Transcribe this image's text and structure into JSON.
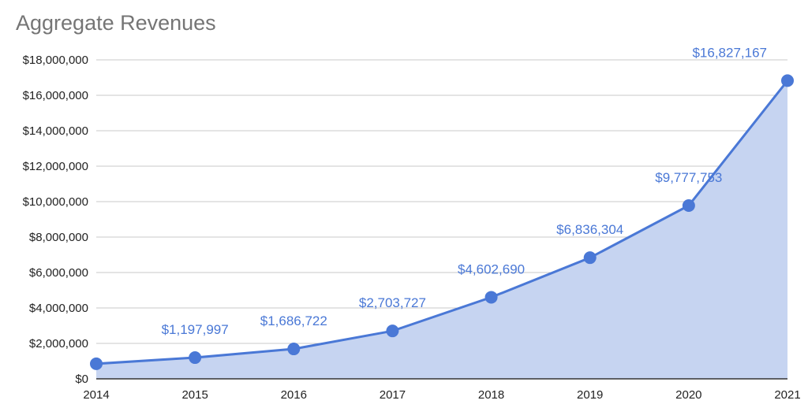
{
  "chart_data": {
    "type": "area",
    "title": "Aggregate Revenues",
    "xlabel": "",
    "ylabel": "",
    "x": [
      "2014",
      "2015",
      "2016",
      "2017",
      "2018",
      "2019",
      "2020",
      "2021"
    ],
    "series": [
      {
        "values": [
          850000,
          1197997,
          1686722,
          2703727,
          4602690,
          6836304,
          9777753,
          16827167
        ]
      }
    ],
    "data_labels": [
      "",
      "$1,197,997",
      "$1,686,722",
      "$2,703,727",
      "$4,602,690",
      "$6,836,304",
      "$9,777,753",
      "$16,827,167"
    ],
    "ylim": [
      0,
      18000000
    ],
    "yticks": [
      0,
      2000000,
      4000000,
      6000000,
      8000000,
      10000000,
      12000000,
      14000000,
      16000000,
      18000000
    ],
    "ytick_labels": [
      "$0",
      "$2,000,000",
      "$4,000,000",
      "$6,000,000",
      "$8,000,000",
      "$10,000,000",
      "$12,000,000",
      "$14,000,000",
      "$16,000,000",
      "$18,000,000"
    ],
    "grid": true,
    "legend": "none",
    "colors": {
      "line": "#4a78d6",
      "fill": "#c6d4f1",
      "label": "#4a78d6",
      "grid": "#c8c8c8",
      "axis": "#333333"
    }
  }
}
